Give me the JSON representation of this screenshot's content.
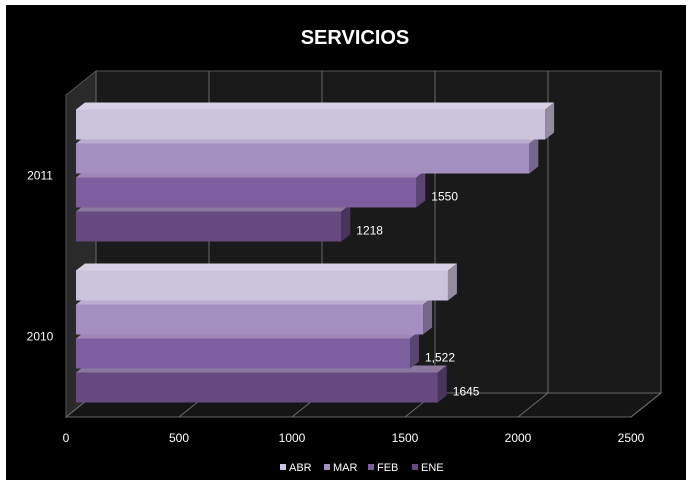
{
  "chart_data": {
    "type": "bar",
    "orientation": "horizontal",
    "style": "3d",
    "title": "SERVICIOS",
    "xlabel": "",
    "ylabel": "",
    "categories": [
      "2011",
      "2010"
    ],
    "series": [
      {
        "name": "ABR",
        "color": "#cbc2dc",
        "values": [
          2120,
          1690
        ],
        "labels": [
          "",
          ""
        ]
      },
      {
        "name": "MAR",
        "color": "#a38fc0",
        "values": [
          2050,
          1580
        ],
        "labels": [
          "",
          ""
        ]
      },
      {
        "name": "FEB",
        "color": "#7d5f9f",
        "values": [
          1550,
          1522
        ],
        "labels": [
          "1550",
          "1,522"
        ]
      },
      {
        "name": "ENE",
        "color": "#66497f",
        "values": [
          1218,
          1645
        ],
        "labels": [
          "1218",
          "1645"
        ]
      }
    ],
    "xlim": [
      0,
      2500
    ],
    "xticks": [
      0,
      500,
      1000,
      1500,
      2000,
      2500
    ],
    "grid": true,
    "legend": "bottom",
    "background": "#000000"
  }
}
